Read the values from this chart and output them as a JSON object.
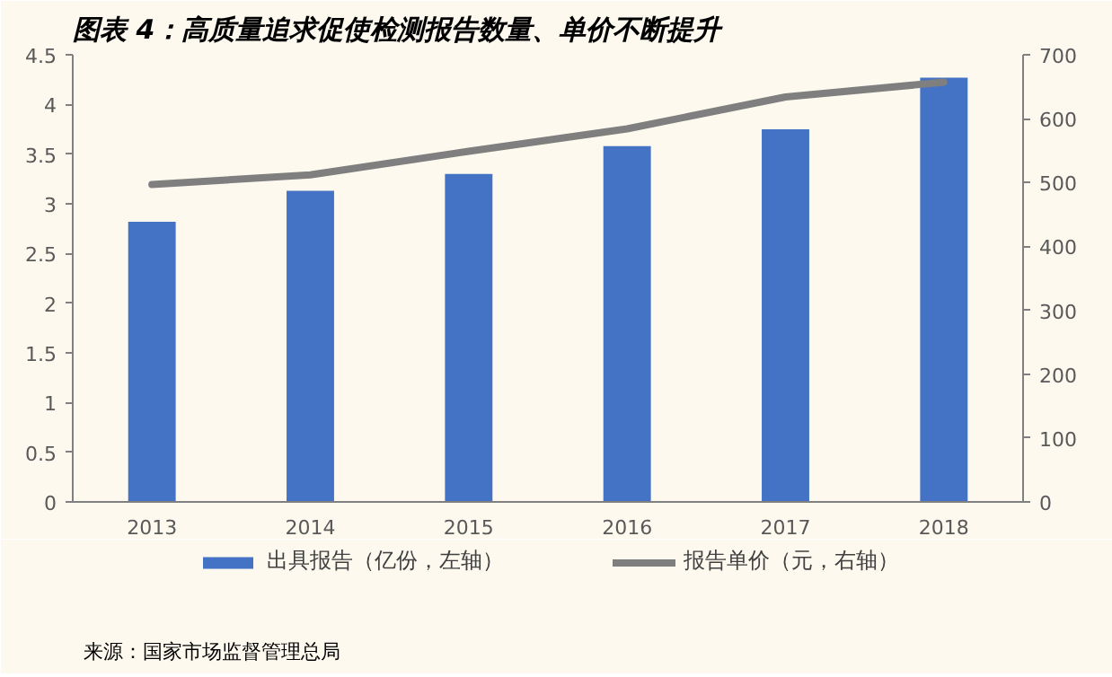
{
  "chart_data": {
    "type": "bar",
    "title": "图表 4：高质量追求促使检测报告数量、单价不断提升",
    "categories": [
      "2013",
      "2014",
      "2015",
      "2016",
      "2017",
      "2018"
    ],
    "series": [
      {
        "name": "出具报告（亿份，左轴）",
        "color": "#4472c4",
        "values": [
          2.82,
          3.13,
          3.3,
          3.58,
          3.75,
          4.27
        ]
      },
      {
        "name": "报告单价（元，右轴）",
        "type": "line",
        "axis": "y2",
        "color": "#7f7f7f",
        "values": [
          497,
          512,
          549,
          584,
          634,
          657
        ]
      }
    ],
    "ylim": [
      0,
      4.5
    ],
    "yticks": [
      0,
      0.5,
      1,
      1.5,
      2,
      2.5,
      3,
      3.5,
      4,
      4.5
    ],
    "y2lim": [
      0,
      700
    ],
    "y2ticks": [
      0,
      100,
      200,
      300,
      400,
      500,
      600,
      700
    ],
    "grid": false,
    "legend": "bottom",
    "marker": "none",
    "line_style": "solid",
    "annotations": [
      "来源：国家市场监督管理总局"
    ]
  }
}
